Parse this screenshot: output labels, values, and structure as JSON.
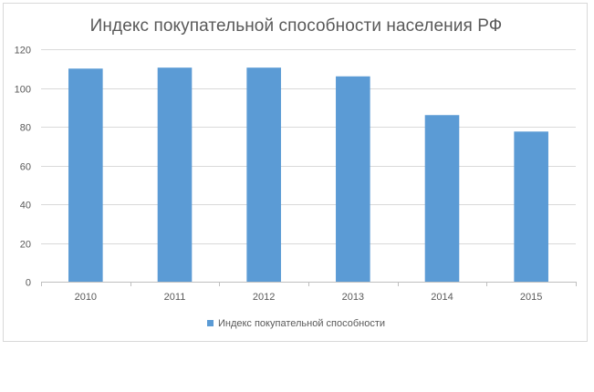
{
  "chart_data": {
    "type": "bar",
    "title": "Индекс покупательной способности населения РФ",
    "categories": [
      "2010",
      "2011",
      "2012",
      "2013",
      "2014",
      "2015"
    ],
    "series": [
      {
        "name": "Индекс покупательной способности",
        "values": [
          110,
          110.5,
          110.5,
          106,
          86,
          77.5
        ],
        "color": "#5b9bd5"
      }
    ],
    "ylim": [
      0,
      120
    ],
    "yticks": [
      0,
      20,
      40,
      60,
      80,
      100,
      120
    ],
    "grid": true,
    "legend_position": "bottom",
    "colors": {
      "grid": "#d9d9d9",
      "axis": "#bfbfbf",
      "text": "#595959"
    }
  }
}
